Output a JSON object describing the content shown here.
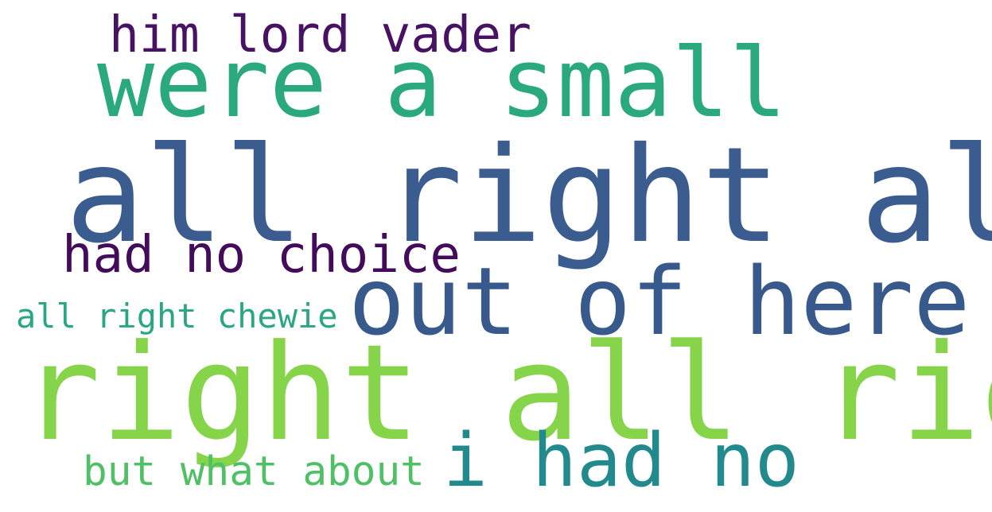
{
  "words": [
    {
      "text": "him lord vader",
      "color": "#471164"
    },
    {
      "text": "were a small",
      "color": "#2aa97e"
    },
    {
      "text": "all right all",
      "color": "#3b5c8f"
    },
    {
      "text": "had no choice",
      "color": "#440b5a"
    },
    {
      "text": "out of here",
      "color": "#38598c"
    },
    {
      "text": "all right chewie",
      "color": "#2aa780"
    },
    {
      "text": "right all right",
      "color": "#86d449"
    },
    {
      "text": "i had no",
      "color": "#228a8c"
    },
    {
      "text": "but what about",
      "color": "#4fc065"
    }
  ]
}
